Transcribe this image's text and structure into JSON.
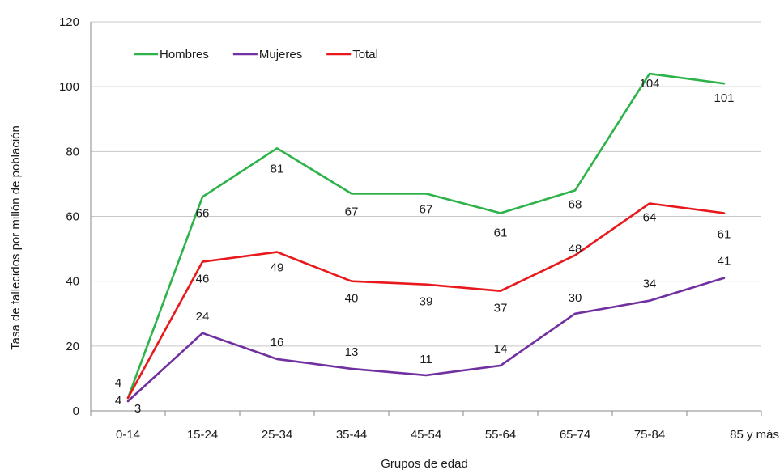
{
  "chart_data": {
    "type": "line",
    "title": "",
    "xlabel": "Grupos de edad",
    "ylabel": "Tasa de fallecidos por millón de población",
    "categories": [
      "0-14",
      "15-24",
      "25-34",
      "35-44",
      "45-54",
      "55-64",
      "65-74",
      "75-84",
      "85 y más"
    ],
    "ylim": [
      0,
      120
    ],
    "yticks": [
      0,
      20,
      40,
      60,
      80,
      100,
      120
    ],
    "grid": true,
    "legend_position": "top-left",
    "series": [
      {
        "name": "Hombres",
        "color": "#2db34a",
        "values": [
          4,
          66,
          81,
          67,
          67,
          61,
          68,
          104,
          101
        ],
        "labels": [
          "4",
          "66",
          "81",
          "67",
          "67",
          "61",
          "68",
          "104",
          "101"
        ]
      },
      {
        "name": "Mujeres",
        "color": "#7030a0",
        "values": [
          3,
          24,
          16,
          13,
          11,
          14,
          30,
          34,
          41
        ],
        "labels": [
          "3",
          "24",
          "16",
          "13",
          "11",
          "14",
          "30",
          "34",
          "41"
        ]
      },
      {
        "name": "Total",
        "color": "#e8191c",
        "values": [
          4,
          46,
          49,
          40,
          39,
          37,
          48,
          64,
          61
        ],
        "labels": [
          "4",
          "46",
          "49",
          "40",
          "39",
          "37",
          "48",
          "64",
          "61"
        ]
      }
    ]
  }
}
